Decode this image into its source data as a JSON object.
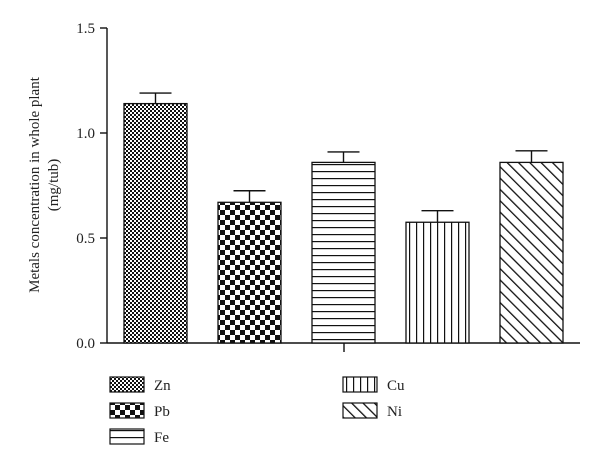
{
  "chart_data": {
    "type": "bar",
    "categories": [
      "Zn",
      "Pb",
      "Fe",
      "Cu",
      "Ni"
    ],
    "values": [
      1.14,
      0.67,
      0.86,
      0.575,
      0.86
    ],
    "error": [
      0.05,
      0.055,
      0.05,
      0.055,
      0.055
    ],
    "patterns": [
      "fine-checker",
      "coarse-checker",
      "horizontal-lines",
      "vertical-lines",
      "diagonal-lines"
    ],
    "ylabel_line1": "Metals concentration in whole plant",
    "ylabel_line2": "(mg/tub)",
    "ylim": [
      0,
      1.5
    ],
    "yticks": [
      "0.0",
      "0.5",
      "1.0",
      "1.5"
    ],
    "grid": false,
    "legend_position": "bottom",
    "colors": {
      "ink": "#111111",
      "background": "#ffffff"
    }
  }
}
